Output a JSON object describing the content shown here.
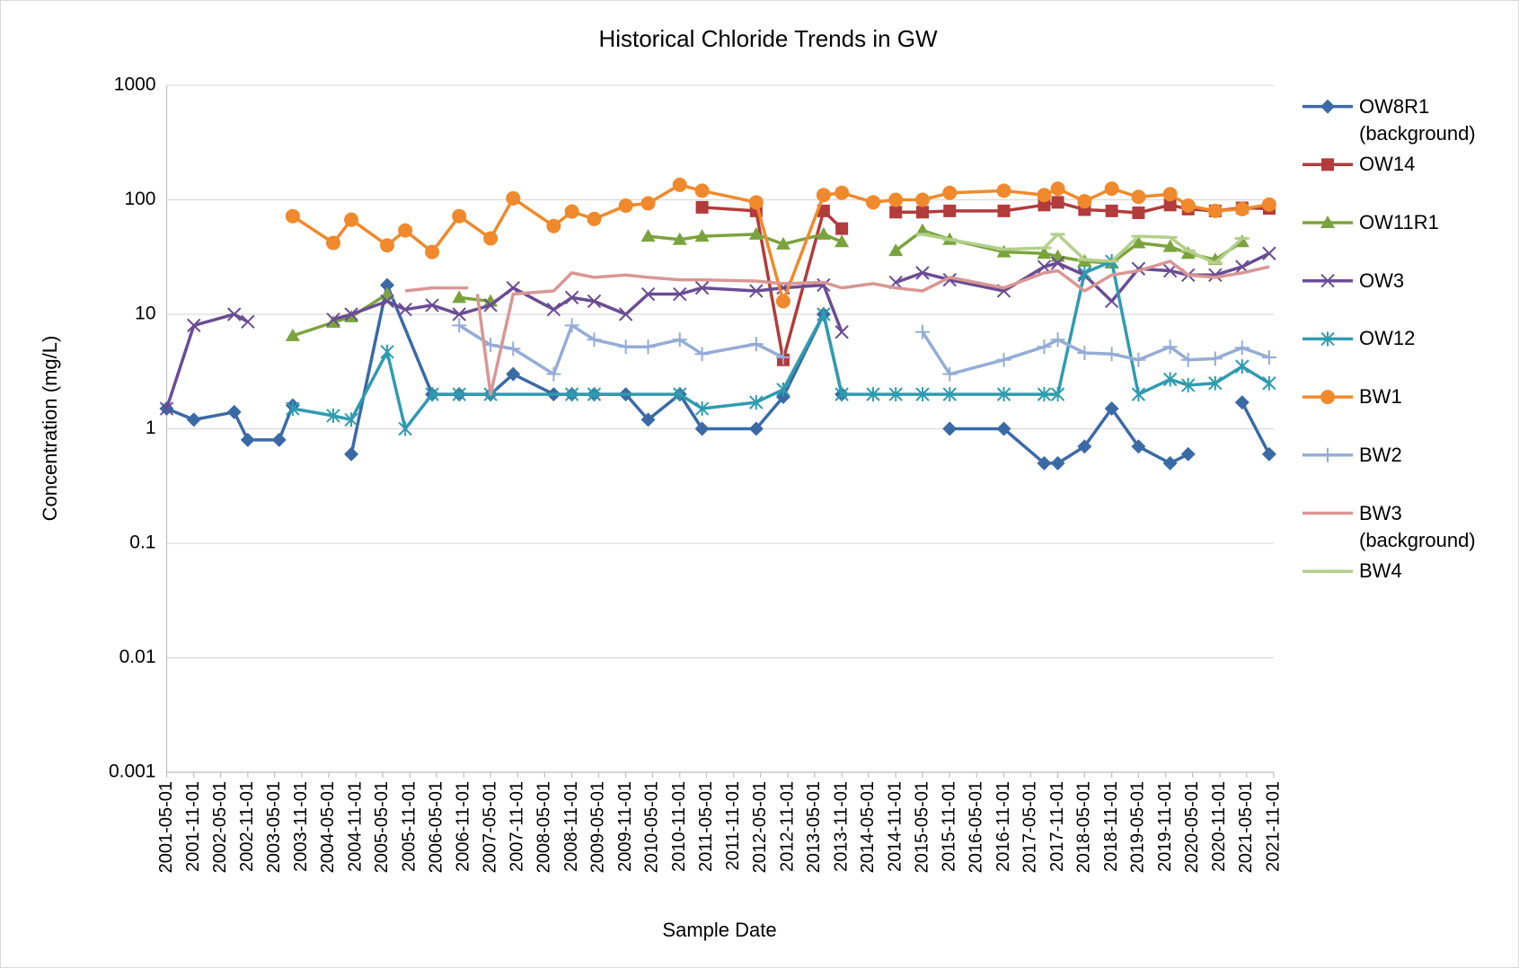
{
  "chart_data": {
    "type": "line",
    "title": "Historical Chloride Trends in GW",
    "x_label": "Sample Date",
    "y_label": "Concentration (mg/L)",
    "yscale": "log",
    "ylim": [
      0.001,
      1000
    ],
    "yticks": [
      0.001,
      0.01,
      0.1,
      1,
      10,
      100,
      1000
    ],
    "xlim": [
      "2001-05-01",
      "2021-11-01"
    ],
    "xticks": [
      "2001-05-01",
      "2001-11-01",
      "2002-05-01",
      "2002-11-01",
      "2003-05-01",
      "2003-11-01",
      "2004-05-01",
      "2004-11-01",
      "2005-05-01",
      "2005-11-01",
      "2006-05-01",
      "2006-11-01",
      "2007-05-01",
      "2007-11-01",
      "2008-05-01",
      "2008-11-01",
      "2009-05-01",
      "2009-11-01",
      "2010-05-01",
      "2010-11-01",
      "2011-05-01",
      "2011-11-01",
      "2012-05-01",
      "2012-11-01",
      "2013-05-01",
      "2013-11-01",
      "2014-05-01",
      "2014-11-01",
      "2015-05-01",
      "2015-11-01",
      "2016-05-01",
      "2016-11-01",
      "2017-05-01",
      "2017-11-01",
      "2018-05-01",
      "2018-11-01",
      "2019-05-01",
      "2019-11-01",
      "2020-05-01",
      "2020-11-01",
      "2021-05-01",
      "2021-11-01"
    ],
    "grid": true,
    "legend": "right",
    "series": [
      {
        "name": "OW8R1 (background)",
        "color": "#3a6aa6",
        "marker": "diamond",
        "x": [
          "2001-05-01",
          "2001-11-01",
          "2002-08-01",
          "2002-11-01",
          "2003-06-01",
          "2003-09-01",
          null,
          "2004-10-01",
          "2005-06-01",
          "2006-04-01",
          "2006-10-01",
          "2007-05-01",
          "2007-10-01",
          "2008-07-01",
          "2008-11-01",
          "2009-04-01",
          "2009-11-01",
          "2010-04-01",
          "2010-11-01",
          "2011-04-01",
          "2012-04-01",
          "2012-10-01",
          "2013-07-01",
          "2013-11-01",
          null,
          "2015-11-01",
          "2016-11-01",
          "2017-08-01",
          "2017-11-01",
          "2018-05-01",
          "2018-11-01",
          "2019-05-01",
          "2019-12-01",
          "2020-04-01",
          null,
          "2021-04-01",
          "2021-10-01"
        ],
        "values": [
          1.5,
          1.2,
          1.4,
          0.8,
          0.8,
          1.6,
          null,
          0.6,
          18,
          2,
          2,
          2,
          3,
          2,
          2,
          2,
          2,
          1.2,
          2,
          1,
          1,
          1.9,
          10,
          2,
          null,
          1,
          1,
          0.5,
          0.5,
          0.7,
          1.5,
          0.7,
          0.5,
          0.6,
          null,
          1.7,
          0.6
        ]
      },
      {
        "name": "OW14",
        "color": "#b23b3b",
        "marker": "square",
        "x": [
          "2011-04-01",
          "2012-04-01",
          "2012-10-01",
          "2013-07-01",
          "2013-11-01",
          null,
          "2014-11-01",
          "2015-05-01",
          "2015-11-01",
          "2016-11-01",
          "2017-08-01",
          "2017-11-01",
          "2018-05-01",
          "2018-11-01",
          "2019-05-01",
          "2019-12-01",
          "2020-04-01",
          "2020-10-01",
          "2021-04-01",
          "2021-10-01"
        ],
        "values": [
          86,
          80,
          4,
          80,
          56,
          null,
          78,
          78,
          80,
          80,
          90,
          95,
          82,
          80,
          77,
          90,
          83,
          80,
          85,
          84
        ]
      },
      {
        "name": "OW11R1",
        "color": "#7ba33d",
        "marker": "triangle",
        "x": [
          "2003-09-01",
          "2004-06-01",
          "2004-10-01",
          "2005-06-01",
          null,
          "2006-10-01",
          "2007-05-01",
          null,
          "2010-04-01",
          "2010-11-01",
          "2011-04-01",
          "2012-04-01",
          "2012-10-01",
          "2013-07-01",
          "2013-11-01",
          null,
          "2014-11-01",
          "2015-05-01",
          "2015-11-01",
          "2016-11-01",
          "2017-08-01",
          "2017-11-01",
          "2018-05-01",
          "2018-11-01",
          "2019-05-01",
          "2019-12-01",
          "2020-04-01",
          "2020-10-01",
          "2021-04-01"
        ],
        "values": [
          6.5,
          8.5,
          9.5,
          15,
          null,
          14,
          13,
          null,
          48,
          45,
          48,
          50,
          41,
          50,
          43,
          null,
          36,
          54,
          45,
          35,
          34,
          32,
          29,
          28,
          42,
          39,
          34,
          30,
          43
        ]
      },
      {
        "name": "OW3",
        "color": "#6a4c94",
        "marker": "x",
        "x": [
          "2001-05-01",
          "2001-11-01",
          "2002-08-01",
          "2002-11-01",
          null,
          "2004-06-01",
          "2004-10-01",
          "2005-06-01",
          "2005-10-01",
          "2006-04-01",
          "2006-10-01",
          "2007-05-01",
          "2007-10-01",
          "2008-07-01",
          "2008-11-01",
          "2009-04-01",
          "2009-11-01",
          "2010-04-01",
          "2010-11-01",
          "2011-04-01",
          "2012-04-01",
          "2012-10-01",
          "2013-07-01",
          "2013-11-01",
          null,
          "2014-11-01",
          "2015-05-01",
          "2015-11-01",
          "2016-11-01",
          "2017-08-01",
          "2017-11-01",
          "2018-05-01",
          "2018-11-01",
          "2019-05-01",
          "2019-12-01",
          "2020-04-01",
          "2020-10-01",
          "2021-04-01",
          "2021-10-01"
        ],
        "values": [
          1.5,
          8,
          10,
          8.6,
          null,
          9,
          10,
          13,
          11,
          12,
          10,
          12,
          17,
          11,
          14,
          13,
          10,
          15,
          15,
          17,
          16,
          17,
          18,
          7,
          null,
          19,
          23,
          20,
          16,
          26,
          28,
          22,
          13,
          25,
          24,
          22,
          22,
          26,
          34
        ]
      },
      {
        "name": "OW12",
        "color": "#2f9bb0",
        "marker": "star",
        "x": [
          "2003-09-01",
          "2004-06-01",
          "2004-10-01",
          "2005-06-01",
          "2005-10-01",
          "2006-04-01",
          "2006-10-01",
          "2007-05-01",
          "2008-11-01",
          "2009-04-01",
          "2010-11-01",
          "2011-04-01",
          "2012-04-01",
          "2012-10-01",
          "2013-07-01",
          "2013-11-01",
          "2014-06-01",
          "2014-11-01",
          "2015-05-01",
          "2015-11-01",
          "2016-11-01",
          "2017-08-01",
          "2017-11-01",
          "2018-05-01",
          "2018-11-01",
          "2019-05-01",
          "2019-12-01",
          "2020-04-01",
          "2020-10-01",
          "2021-04-01",
          "2021-10-01"
        ],
        "values": [
          1.5,
          1.3,
          1.2,
          4.7,
          1,
          2,
          2,
          2,
          2,
          2,
          2,
          1.5,
          1.7,
          2.2,
          10,
          2,
          2,
          2,
          2,
          2,
          2,
          2,
          2,
          23,
          29,
          2,
          2.7,
          2.4,
          2.5,
          3.5,
          2.5
        ]
      },
      {
        "name": "BW1",
        "color": "#f0892b",
        "marker": "circle",
        "x": [
          "2003-09-01",
          "2004-06-01",
          "2004-10-01",
          "2005-06-01",
          "2005-10-01",
          "2006-04-01",
          "2006-10-01",
          "2007-05-01",
          "2007-10-01",
          "2008-07-01",
          "2008-11-01",
          "2009-04-01",
          "2009-11-01",
          "2010-04-01",
          "2010-11-01",
          "2011-04-01",
          "2012-04-01",
          "2012-10-01",
          "2013-07-01",
          "2013-11-01",
          "2014-06-01",
          "2014-11-01",
          "2015-05-01",
          "2015-11-01",
          "2016-11-01",
          "2017-08-01",
          "2017-11-01",
          "2018-05-01",
          "2018-11-01",
          "2019-05-01",
          "2019-12-01",
          "2020-04-01",
          "2020-10-01",
          "2021-04-01",
          "2021-10-01"
        ],
        "values": [
          72,
          42,
          67,
          40,
          54,
          35,
          72,
          46,
          103,
          59,
          79,
          68,
          89,
          93,
          135,
          120,
          95,
          13,
          110,
          115,
          95,
          100,
          100,
          115,
          120,
          110,
          125,
          97,
          125,
          106,
          112,
          89,
          80,
          83,
          91
        ]
      },
      {
        "name": "BW2",
        "color": "#94acd6",
        "marker": "plus",
        "x": [
          "2006-10-01",
          "2007-05-01",
          "2007-10-01",
          "2008-07-01",
          "2008-11-01",
          "2009-04-01",
          "2009-11-01",
          "2010-04-01",
          "2010-11-01",
          "2011-04-01",
          "2012-04-01",
          "2012-10-01",
          null,
          "2015-05-01",
          "2015-11-01",
          "2016-11-01",
          "2017-08-01",
          "2017-11-01",
          "2018-05-01",
          "2018-11-01",
          "2019-05-01",
          "2019-12-01",
          "2020-04-01",
          "2020-10-01",
          "2021-04-01",
          "2021-10-01"
        ],
        "values": [
          8,
          5.4,
          5,
          3,
          8,
          6,
          5.2,
          5.2,
          6,
          4.5,
          5.5,
          4.2,
          null,
          7,
          3,
          4,
          5.2,
          6,
          4.6,
          4.5,
          4,
          5.2,
          4,
          4.1,
          5.1,
          4.2
        ]
      },
      {
        "name": "BW3 (background)",
        "color": "#d99694",
        "marker": "none",
        "x": [
          "2005-10-01",
          "2006-04-01",
          "2006-12-01",
          null,
          "2007-02-01",
          "2007-05-01",
          "2007-10-01",
          "2008-07-01",
          "2008-11-01",
          "2009-04-01",
          "2009-11-01",
          "2010-04-01",
          "2010-11-01",
          "2011-04-01",
          "2012-04-01",
          "2012-10-01",
          "2013-07-01",
          "2013-11-01",
          "2014-06-01",
          "2014-11-01",
          "2015-05-01",
          "2015-11-01",
          "2016-11-01",
          "2017-08-01",
          "2017-11-01",
          "2018-05-01",
          "2018-11-01",
          "2019-05-01",
          "2019-12-01",
          "2020-04-01",
          "2020-10-01",
          "2021-04-01",
          "2021-10-01"
        ],
        "values": [
          16,
          17,
          17,
          null,
          15,
          2,
          15,
          16,
          23,
          21,
          22,
          21,
          20,
          20,
          19.5,
          18.5,
          19,
          17,
          18.5,
          17,
          16,
          21,
          17,
          23,
          24,
          16,
          22,
          24,
          29,
          22,
          21,
          23,
          26
        ]
      },
      {
        "name": "BW4",
        "color": "#b3cf8b",
        "marker": "dash",
        "x": [
          "2015-05-01",
          "2015-11-01",
          "2016-11-01",
          "2017-08-01",
          "2017-11-01",
          "2018-05-01",
          "2018-11-01",
          "2019-05-01",
          "2019-12-01",
          "2020-04-01",
          "2020-10-01",
          "2021-04-01"
        ],
        "values": [
          50,
          45,
          37,
          38,
          50,
          30,
          29,
          48,
          47,
          36,
          28,
          46
        ]
      }
    ]
  }
}
